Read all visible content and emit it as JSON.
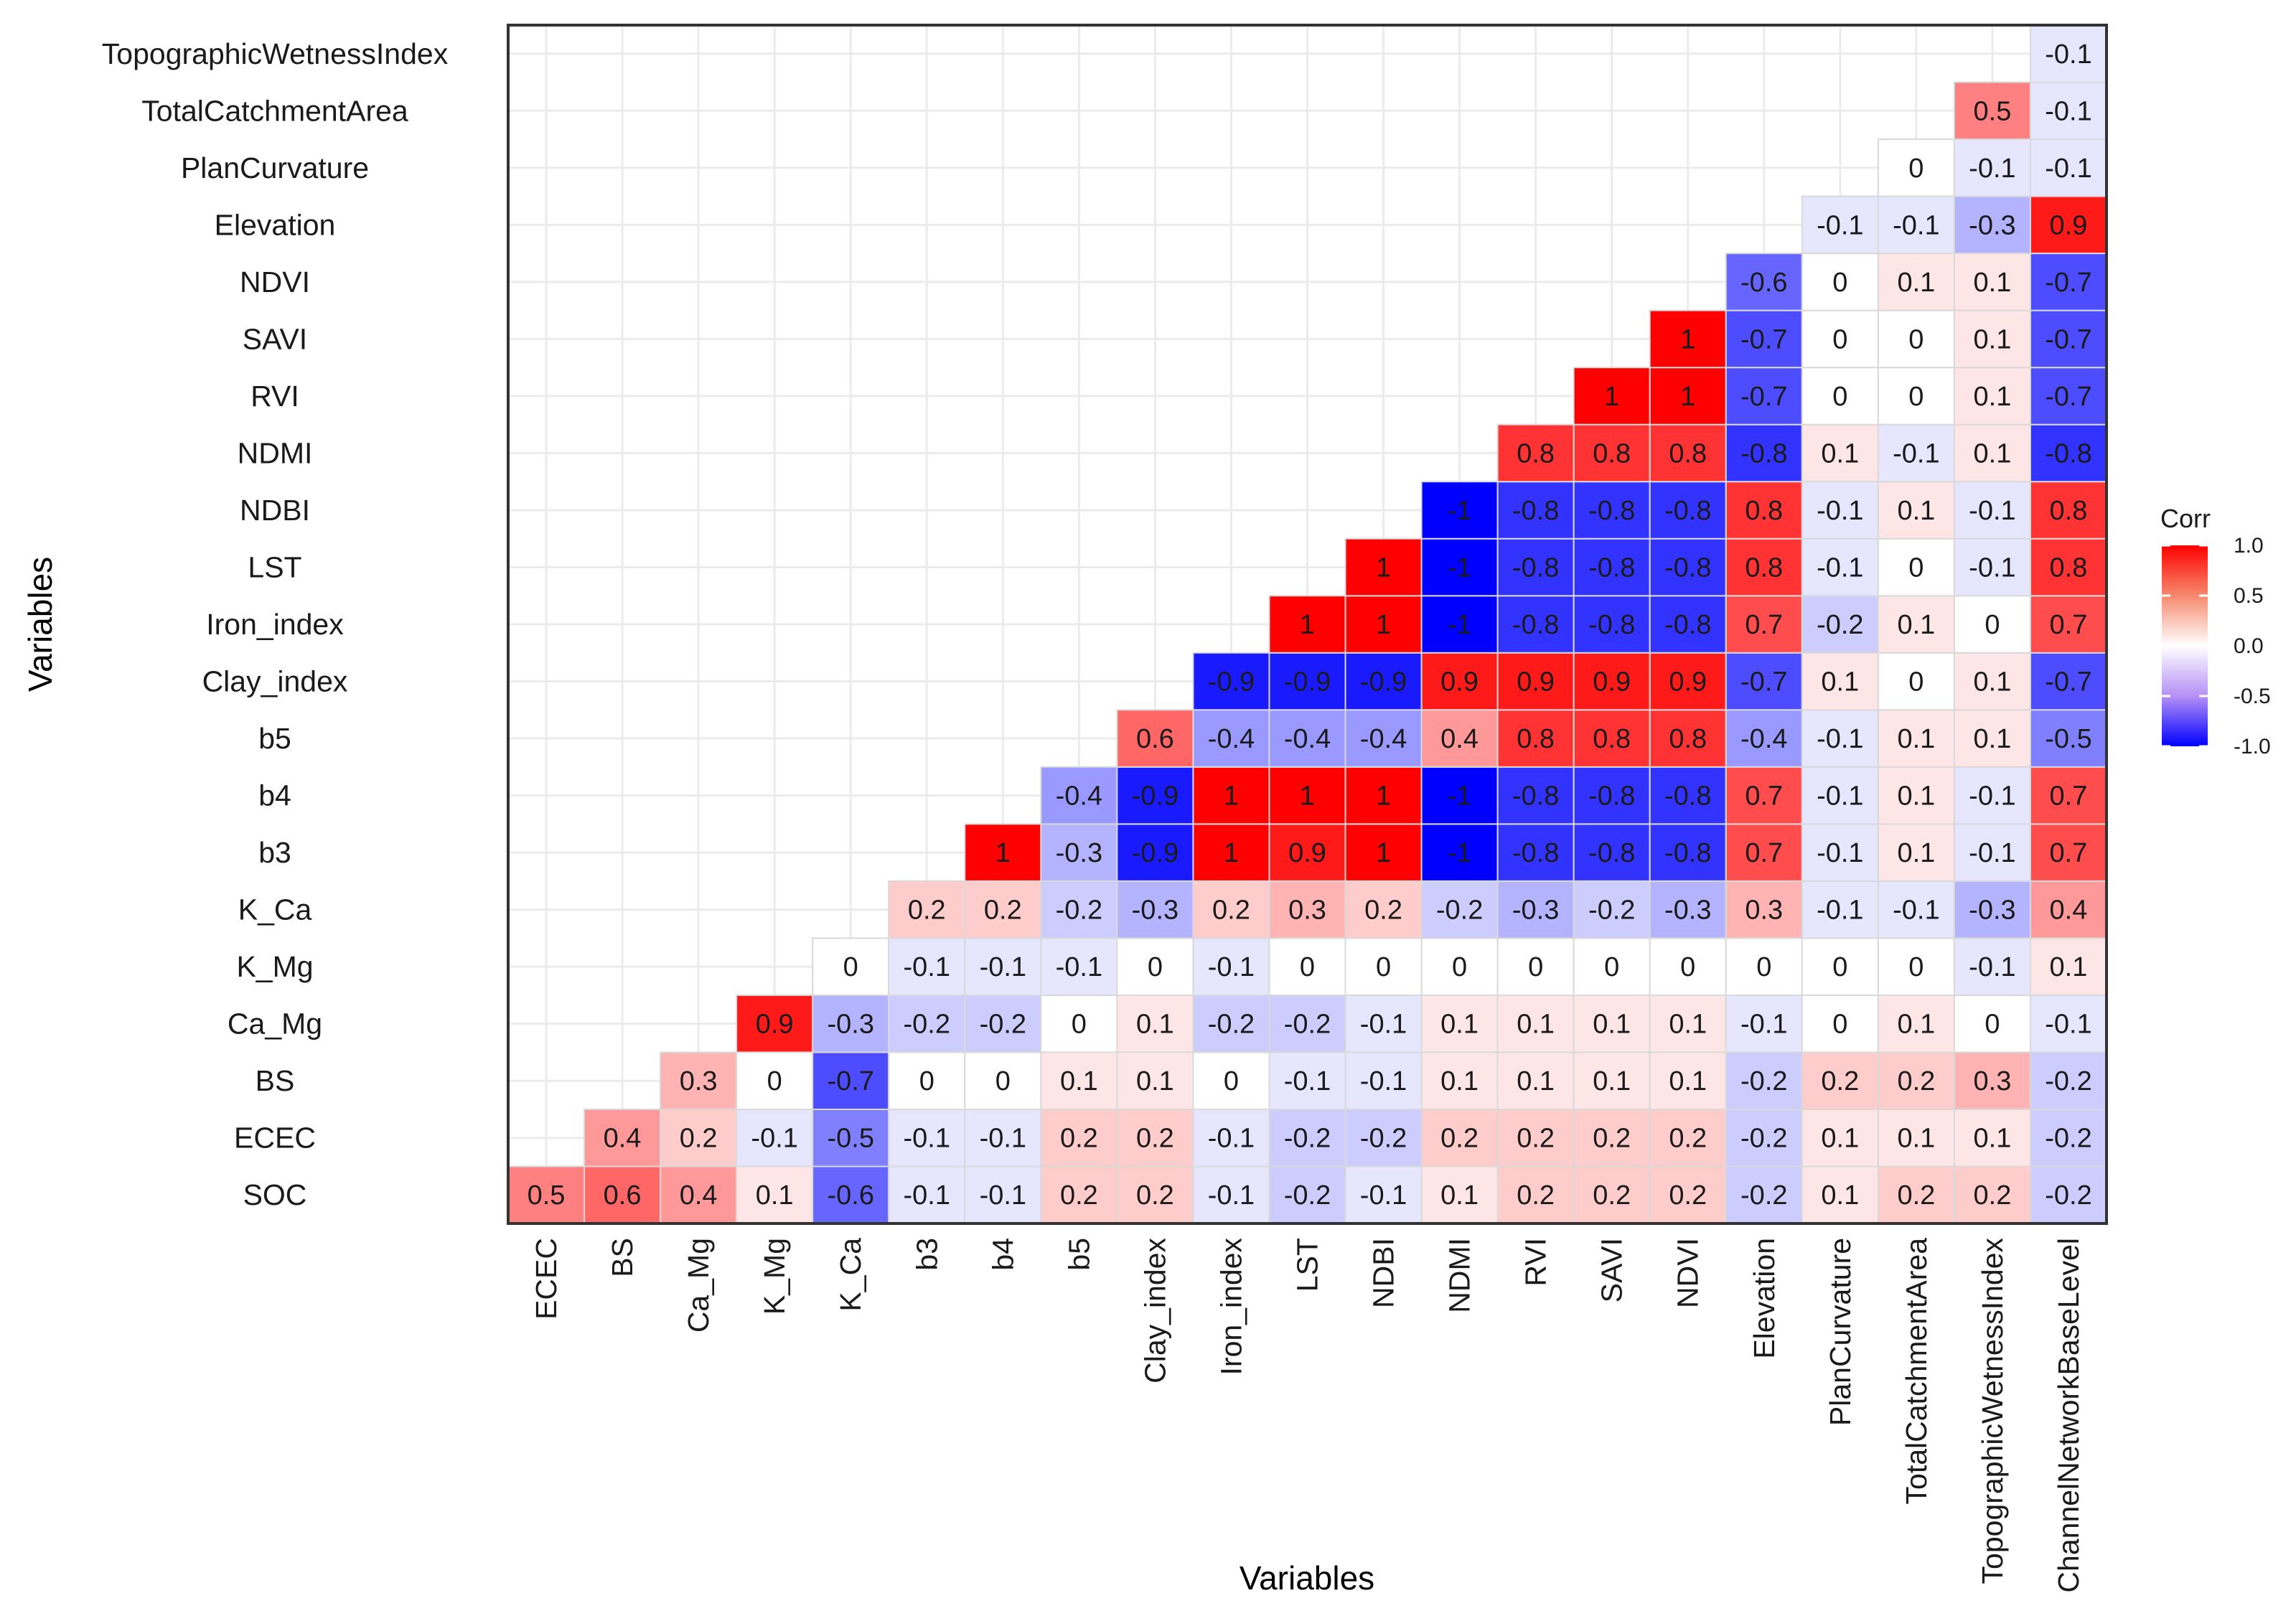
{
  "chart_data": {
    "type": "heatmap",
    "title": "",
    "xlabel": "Variables",
    "ylabel": "Variables",
    "x_variables": [
      "ECEC",
      "BS",
      "Ca_Mg",
      "K_Mg",
      "K_Ca",
      "b3",
      "b4",
      "b5",
      "Clay_index",
      "Iron_index",
      "LST",
      "NDBI",
      "NDMI",
      "RVI",
      "SAVI",
      "NDVI",
      "Elevation",
      "PlanCurvature",
      "TotalCatchmentArea",
      "TopographicWetnessIndex",
      "ChannelNetworkBaseLevel"
    ],
    "y_variables": [
      "SOC",
      "ECEC",
      "BS",
      "Ca_Mg",
      "K_Mg",
      "K_Ca",
      "b3",
      "b4",
      "b5",
      "Clay_index",
      "Iron_index",
      "LST",
      "NDBI",
      "NDMI",
      "RVI",
      "SAVI",
      "NDVI",
      "Elevation",
      "PlanCurvature",
      "TotalCatchmentArea",
      "TopographicWetnessIndex"
    ],
    "rows": [
      {
        "variable": "SOC",
        "values": [
          "0.5",
          "0.6",
          "0.4",
          "0.1",
          "-0.6",
          "-0.1",
          "-0.1",
          "0.2",
          "0.2",
          "-0.1",
          "-0.2",
          "-0.1",
          "0.1",
          "0.2",
          "0.2",
          "0.2",
          "-0.2",
          "0.1",
          "0.2",
          "0.2",
          "-0.2"
        ]
      },
      {
        "variable": "ECEC",
        "values": [
          "0.4",
          "0.2",
          "-0.1",
          "-0.5",
          "-0.1",
          "-0.1",
          "0.2",
          "0.2",
          "-0.1",
          "-0.2",
          "-0.2",
          "0.2",
          "0.2",
          "0.2",
          "0.2",
          "-0.2",
          "0.1",
          "0.1",
          "0.1",
          "-0.2"
        ]
      },
      {
        "variable": "BS",
        "values": [
          "0.3",
          "0",
          "-0.7",
          "0",
          "0",
          "0.1",
          "0.1",
          "0",
          "-0.1",
          "-0.1",
          "0.1",
          "0.1",
          "0.1",
          "0.1",
          "-0.2",
          "0.2",
          "0.2",
          "0.3",
          "-0.2"
        ]
      },
      {
        "variable": "Ca_Mg",
        "values": [
          "0.9",
          "-0.3",
          "-0.2",
          "-0.2",
          "0",
          "0.1",
          "-0.2",
          "-0.2",
          "-0.1",
          "0.1",
          "0.1",
          "0.1",
          "0.1",
          "-0.1",
          "0",
          "0.1",
          "0",
          "-0.1"
        ]
      },
      {
        "variable": "K_Mg",
        "values": [
          "0",
          "-0.1",
          "-0.1",
          "-0.1",
          "0",
          "-0.1",
          "0",
          "0",
          "0",
          "0",
          "0",
          "0",
          "0",
          "0",
          "0",
          "-0.1",
          "0.1"
        ]
      },
      {
        "variable": "K_Ca",
        "values": [
          "0.2",
          "0.2",
          "-0.2",
          "-0.3",
          "0.2",
          "0.3",
          "0.2",
          "-0.2",
          "-0.3",
          "-0.2",
          "-0.3",
          "0.3",
          "-0.1",
          "-0.1",
          "-0.3",
          "0.4"
        ]
      },
      {
        "variable": "b3",
        "values": [
          "1",
          "-0.3",
          "-0.9",
          "1",
          "0.9",
          "1",
          "-1",
          "-0.8",
          "-0.8",
          "-0.8",
          "0.7",
          "-0.1",
          "0.1",
          "-0.1",
          "0.7"
        ]
      },
      {
        "variable": "b4",
        "values": [
          "-0.4",
          "-0.9",
          "1",
          "1",
          "1",
          "-1",
          "-0.8",
          "-0.8",
          "-0.8",
          "0.7",
          "-0.1",
          "0.1",
          "-0.1",
          "0.7"
        ]
      },
      {
        "variable": "b5",
        "values": [
          "0.6",
          "-0.4",
          "-0.4",
          "-0.4",
          "0.4",
          "0.8",
          "0.8",
          "0.8",
          "-0.4",
          "-0.1",
          "0.1",
          "0.1",
          "-0.5"
        ]
      },
      {
        "variable": "Clay_index",
        "values": [
          "-0.9",
          "-0.9",
          "-0.9",
          "0.9",
          "0.9",
          "0.9",
          "0.9",
          "-0.7",
          "0.1",
          "0",
          "0.1",
          "-0.7"
        ]
      },
      {
        "variable": "Iron_index",
        "values": [
          "1",
          "1",
          "-1",
          "-0.8",
          "-0.8",
          "-0.8",
          "0.7",
          "-0.2",
          "0.1",
          "0",
          "0.7"
        ]
      },
      {
        "variable": "LST",
        "values": [
          "1",
          "-1",
          "-0.8",
          "-0.8",
          "-0.8",
          "0.8",
          "-0.1",
          "0",
          "-0.1",
          "0.8"
        ]
      },
      {
        "variable": "NDBI",
        "values": [
          "-1",
          "-0.8",
          "-0.8",
          "-0.8",
          "0.8",
          "-0.1",
          "0.1",
          "-0.1",
          "0.8"
        ]
      },
      {
        "variable": "NDMI",
        "values": [
          "0.8",
          "0.8",
          "0.8",
          "-0.8",
          "0.1",
          "-0.1",
          "0.1",
          "-0.8"
        ]
      },
      {
        "variable": "RVI",
        "values": [
          "1",
          "1",
          "-0.7",
          "0",
          "0",
          "0.1",
          "-0.7"
        ]
      },
      {
        "variable": "SAVI",
        "values": [
          "1",
          "-0.7",
          "0",
          "0",
          "0.1",
          "-0.7"
        ]
      },
      {
        "variable": "NDVI",
        "values": [
          "-0.6",
          "0",
          "0.1",
          "0.1",
          "-0.7"
        ]
      },
      {
        "variable": "Elevation",
        "values": [
          "-0.1",
          "-0.1",
          "-0.3",
          "0.9"
        ]
      },
      {
        "variable": "PlanCurvature",
        "values": [
          "0",
          "-0.1",
          "-0.1"
        ]
      },
      {
        "variable": "TotalCatchmentArea",
        "values": [
          "0.5",
          "-0.1"
        ]
      },
      {
        "variable": "TopographicWetnessIndex",
        "values": [
          "-0.1"
        ]
      }
    ],
    "color_scale": {
      "low": "#0000ff",
      "mid": "#ffffff",
      "high": "#ff0000",
      "limits": [
        -1.0,
        1.0
      ]
    },
    "legend": {
      "title": "Corr",
      "ticks": [
        "1.0",
        "0.5",
        "0.0",
        "-0.5",
        "-1.0"
      ],
      "placement": "right"
    },
    "grid": true
  }
}
